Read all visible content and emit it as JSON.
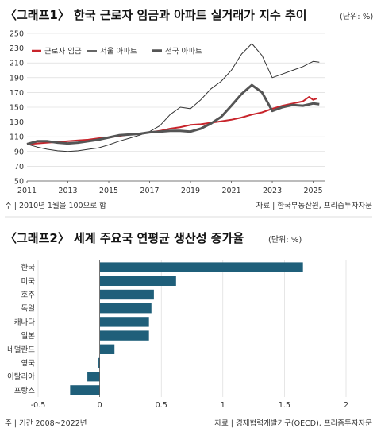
{
  "chart_data": [
    {
      "type": "line",
      "title": "〈그래프1〉 한국 근로자 임금과 아파트 실거래가 지수 추이",
      "unit": "(단위: %)",
      "ylim": [
        50,
        250
      ],
      "yticks": [
        50,
        70,
        90,
        110,
        130,
        150,
        170,
        190,
        210,
        230,
        250
      ],
      "xlim": [
        2011,
        2025.6
      ],
      "xticks": [
        2011,
        2013,
        2015,
        2017,
        2019,
        2021,
        2023,
        2025
      ],
      "grid": true,
      "legend_position": "top-left",
      "series": [
        {
          "name": "근로자 임금",
          "color": "#c8242b",
          "x": [
            2011,
            2011.5,
            2012,
            2012.5,
            2013,
            2013.5,
            2014,
            2014.5,
            2015,
            2015.5,
            2016,
            2016.5,
            2017,
            2017.5,
            2018,
            2018.5,
            2019,
            2019.5,
            2020,
            2020.5,
            2021,
            2021.5,
            2022,
            2022.5,
            2023,
            2023.5,
            2024,
            2024.5,
            2024.8,
            2025,
            2025.2
          ],
          "values": [
            100,
            101,
            102,
            103,
            104,
            105,
            106,
            108,
            109,
            111,
            113,
            114,
            116,
            118,
            121,
            123,
            126,
            127,
            129,
            131,
            133,
            136,
            140,
            143,
            148,
            152,
            155,
            158,
            164,
            160,
            162
          ]
        },
        {
          "name": "서울 아파트",
          "color": "#333333",
          "x": [
            2011,
            2011.5,
            2012,
            2012.5,
            2013,
            2013.5,
            2014,
            2014.5,
            2015,
            2015.5,
            2016,
            2016.5,
            2017,
            2017.5,
            2018,
            2018.5,
            2019,
            2019.5,
            2020,
            2020.5,
            2021,
            2021.5,
            2022,
            2022.5,
            2023,
            2023.5,
            2024,
            2024.5,
            2025,
            2025.3
          ],
          "values": [
            100,
            96,
            93,
            91,
            90,
            91,
            93,
            95,
            99,
            104,
            108,
            112,
            117,
            125,
            140,
            150,
            148,
            160,
            175,
            185,
            200,
            222,
            236,
            220,
            190,
            195,
            200,
            205,
            212,
            211
          ]
        },
        {
          "name": "전국 아파트",
          "color": "#555555",
          "x": [
            2011,
            2011.5,
            2012,
            2012.5,
            2013,
            2013.5,
            2014,
            2014.5,
            2015,
            2015.5,
            2016,
            2016.5,
            2017,
            2017.5,
            2018,
            2018.5,
            2019,
            2019.5,
            2020,
            2020.5,
            2021,
            2021.5,
            2022,
            2022.5,
            2023,
            2023.5,
            2024,
            2024.5,
            2025,
            2025.3
          ],
          "values": [
            100,
            104,
            104,
            102,
            101,
            102,
            104,
            106,
            109,
            112,
            113,
            114,
            116,
            117,
            118,
            118,
            117,
            121,
            128,
            137,
            152,
            168,
            180,
            170,
            145,
            150,
            153,
            152,
            155,
            154
          ]
        }
      ],
      "note_left": "주 | 2010년 1월을 100으로 함",
      "note_right": "자료 | 한국부동산원, 프리즘투자자문"
    },
    {
      "type": "bar",
      "orientation": "horizontal",
      "title": "〈그래프2〉 세계 주요국 연평균 생산성 증가율",
      "unit": "(단위: %)",
      "color": "#1f5f7a",
      "categories": [
        "한국",
        "미국",
        "호주",
        "독일",
        "캐나다",
        "일본",
        "네덜란드",
        "영국",
        "이탈리아",
        "프랑스"
      ],
      "values": [
        1.65,
        0.62,
        0.44,
        0.42,
        0.4,
        0.4,
        0.12,
        -0.01,
        -0.1,
        -0.24
      ],
      "xlim": [
        -0.5,
        2
      ],
      "xticks": [
        "-0.5",
        "0",
        "0.5",
        "1",
        "1.5",
        "2"
      ],
      "grid": true,
      "note_left": "주 | 기간 2008~2022년",
      "note_right": "자료 | 경제협력개발기구(OECD), 프리즘투자자문"
    }
  ]
}
